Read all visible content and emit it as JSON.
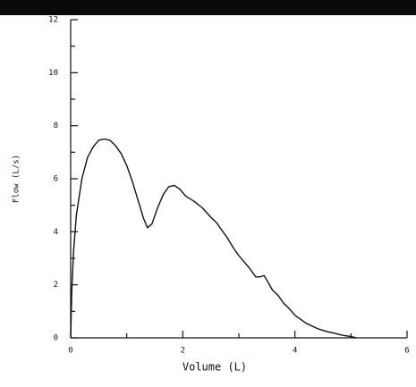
{
  "chart_data": {
    "type": "line",
    "x_label": "Volume (L)",
    "y_label": "Flow (L/s)",
    "xlim": [
      0,
      6
    ],
    "ylim": [
      0,
      12
    ],
    "xticks": [
      0,
      2,
      4,
      6
    ],
    "yticks": [
      0,
      2,
      4,
      6,
      8,
      10,
      12
    ],
    "x_minor_ticks": [
      1,
      3,
      5
    ],
    "y_minor_ticks": [
      1,
      3,
      5,
      7,
      9,
      11
    ],
    "grid": false,
    "series": [
      {
        "color": "#111111",
        "x": [
          0,
          0.02,
          0.05,
          0.1,
          0.2,
          0.3,
          0.4,
          0.5,
          0.6,
          0.7,
          0.8,
          0.9,
          1.0,
          1.1,
          1.2,
          1.3,
          1.37,
          1.45,
          1.55,
          1.65,
          1.75,
          1.85,
          1.95,
          2.05,
          2.2,
          2.35,
          2.5,
          2.6,
          2.7,
          2.8,
          2.9,
          3.0,
          3.1,
          3.2,
          3.3,
          3.38,
          3.45,
          3.52,
          3.6,
          3.7,
          3.8,
          3.9,
          4.0,
          4.1,
          4.2,
          4.3,
          4.4,
          4.5,
          4.6,
          4.7,
          4.8,
          4.9,
          5.0,
          5.1
        ],
        "values": [
          0,
          1.8,
          3.2,
          4.6,
          6.0,
          6.8,
          7.2,
          7.45,
          7.5,
          7.45,
          7.25,
          6.95,
          6.5,
          5.9,
          5.2,
          4.5,
          4.15,
          4.3,
          4.9,
          5.4,
          5.7,
          5.75,
          5.6,
          5.35,
          5.15,
          4.9,
          4.55,
          4.35,
          4.05,
          3.75,
          3.4,
          3.1,
          2.85,
          2.6,
          2.3,
          2.3,
          2.35,
          2.1,
          1.8,
          1.6,
          1.3,
          1.1,
          0.85,
          0.7,
          0.55,
          0.45,
          0.35,
          0.28,
          0.22,
          0.18,
          0.12,
          0.08,
          0.05,
          0
        ]
      }
    ]
  }
}
